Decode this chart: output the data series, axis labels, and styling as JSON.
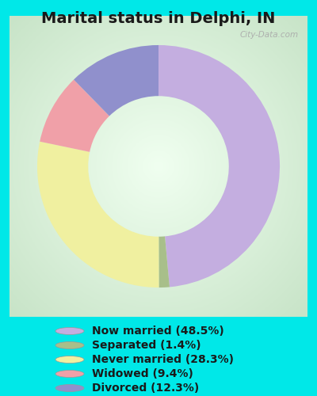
{
  "title": "Marital status in Delphi, IN",
  "title_fontsize": 14,
  "title_fontweight": "bold",
  "slices": [
    {
      "label": "Now married (48.5%)",
      "value": 48.5,
      "color": "#c4aee0"
    },
    {
      "label": "Separated (1.4%)",
      "value": 1.4,
      "color": "#a8bf8a"
    },
    {
      "label": "Never married (28.3%)",
      "value": 28.3,
      "color": "#f0f0a0"
    },
    {
      "label": "Widowed (9.4%)",
      "value": 9.4,
      "color": "#f0a0a8"
    },
    {
      "label": "Divorced (12.3%)",
      "value": 12.3,
      "color": "#9090cc"
    }
  ],
  "background_outer": "#00e8e8",
  "watermark": "City-Data.com",
  "legend_fontsize": 10,
  "start_angle": 90
}
